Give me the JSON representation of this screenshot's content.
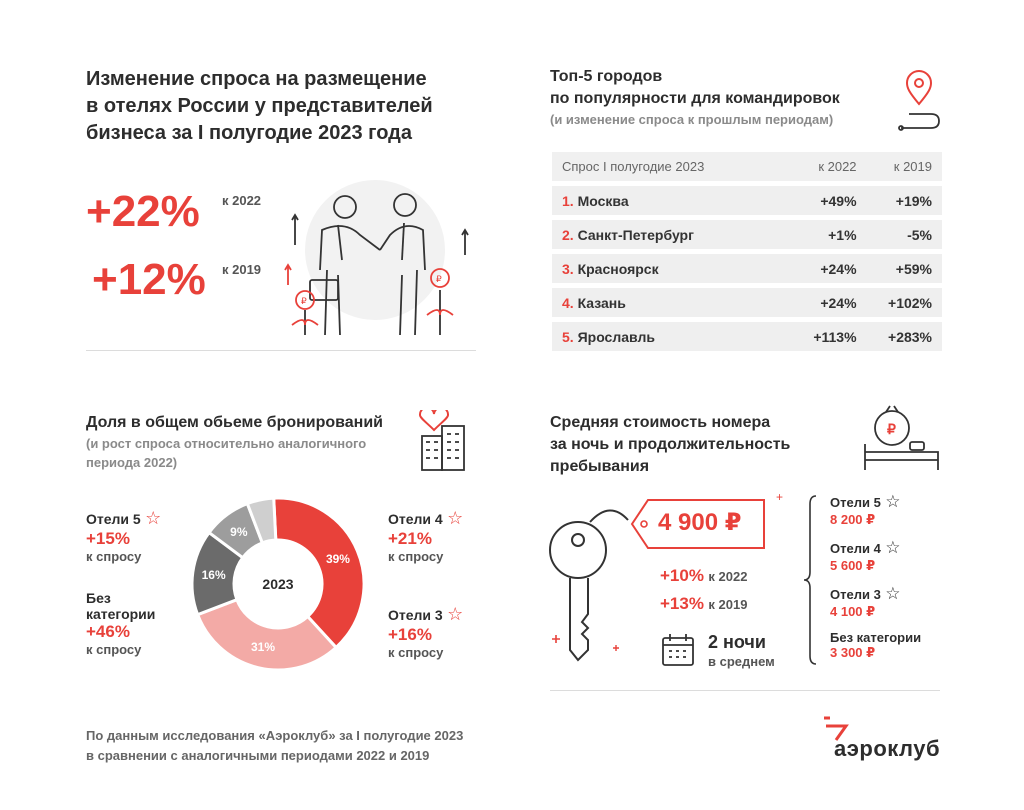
{
  "main_title": [
    "Изменение спроса на размещение",
    "в отелях России у представителей",
    "бизнеса за I полугодие 2023 года"
  ],
  "growth": [
    {
      "value": "+22%",
      "label": "к 2022"
    },
    {
      "value": "+12%",
      "label": "к 2019"
    }
  ],
  "top5": {
    "title": [
      "Топ-5 городов",
      "по популярности для командировок"
    ],
    "subtitle": "(и изменение спроса к прошлым периодам)",
    "headers": [
      "Спрос I полугодие 2023",
      "к 2022",
      "к 2019"
    ],
    "rows": [
      {
        "rank": "1.",
        "city": "Москва",
        "v2022": "+49%",
        "v2019": "+19%",
        "v2019_red": true
      },
      {
        "rank": "2.",
        "city": "Санкт-Петербург",
        "v2022": "+1%",
        "v2019": "-5%",
        "v2019_red": false
      },
      {
        "rank": "3.",
        "city": "Красноярск",
        "v2022": "+24%",
        "v2019": "+59%",
        "v2019_red": true
      },
      {
        "rank": "4.",
        "city": "Казань",
        "v2022": "+24%",
        "v2019": "+102%",
        "v2019_red": true
      },
      {
        "rank": "5.",
        "city": "Ярославль",
        "v2022": "+113%",
        "v2019": "+283%",
        "v2019_red": true
      }
    ]
  },
  "share": {
    "title": "Доля в общем обьеме бронирований",
    "subtitle": [
      "(и рост спроса относительно аналогичного",
      "периода 2022)"
    ],
    "center": "2023",
    "segments": [
      {
        "name": "Отели 4",
        "percent": 39,
        "label": "39%",
        "color": "#e8413a"
      },
      {
        "name": "Отели 3",
        "percent": 31,
        "label": "31%",
        "color": "#f3aaa6"
      },
      {
        "name": "Без категории",
        "percent": 16,
        "label": "16%",
        "color": "#6b6b6b"
      },
      {
        "name": "Отели 5",
        "percent": 9,
        "label": "9%",
        "color": "#9d9d9d"
      },
      {
        "name": "",
        "percent": 5,
        "label": "",
        "color": "#cfcfcf"
      }
    ],
    "legend": {
      "h5": {
        "name": "Отели 5",
        "growth": "+15%",
        "note": "к спросу"
      },
      "nocat": {
        "name1": "Без",
        "name2": "категории",
        "growth": "+46%",
        "note": "к спросу"
      },
      "h4": {
        "name": "Отели 4",
        "growth": "+21%",
        "note": "к спросу"
      },
      "h3": {
        "name": "Отели 3",
        "growth": "+16%",
        "note": "к спросу"
      }
    }
  },
  "cost": {
    "title": [
      "Средняя стоимость номера",
      "за ночь и продолжительность",
      "пребывания"
    ],
    "price": "4 900 ₽",
    "changes": [
      {
        "value": "+10%",
        "label": "к 2022"
      },
      {
        "value": "+13%",
        "label": "к 2019"
      }
    ],
    "nights": "2 ночи",
    "nights_note": "в среднем",
    "categories": [
      {
        "name": "Отели 5",
        "price": "8 200 ₽"
      },
      {
        "name": "Отели 4",
        "price": "5 600 ₽"
      },
      {
        "name": "Отели 3",
        "price": "4 100 ₽"
      },
      {
        "name": "Без категории",
        "price": "3 300 ₽"
      }
    ]
  },
  "footer": {
    "source": [
      "По данным исследования «Аэроклуб» за I полугодие 2023",
      "в сравнении с аналогичными периодами 2022 и 2019"
    ],
    "logo": "аэроклуб"
  },
  "colors": {
    "accent": "#e8413a",
    "light_accent": "#f3aaa6",
    "dark_grey": "#6b6b6b"
  },
  "icons": [
    "handshake-illustration",
    "map-pin-icon",
    "heart-building-icon",
    "clock-bed-icon",
    "key-icon",
    "price-tag-icon",
    "calendar-icon",
    "star-icon"
  ]
}
